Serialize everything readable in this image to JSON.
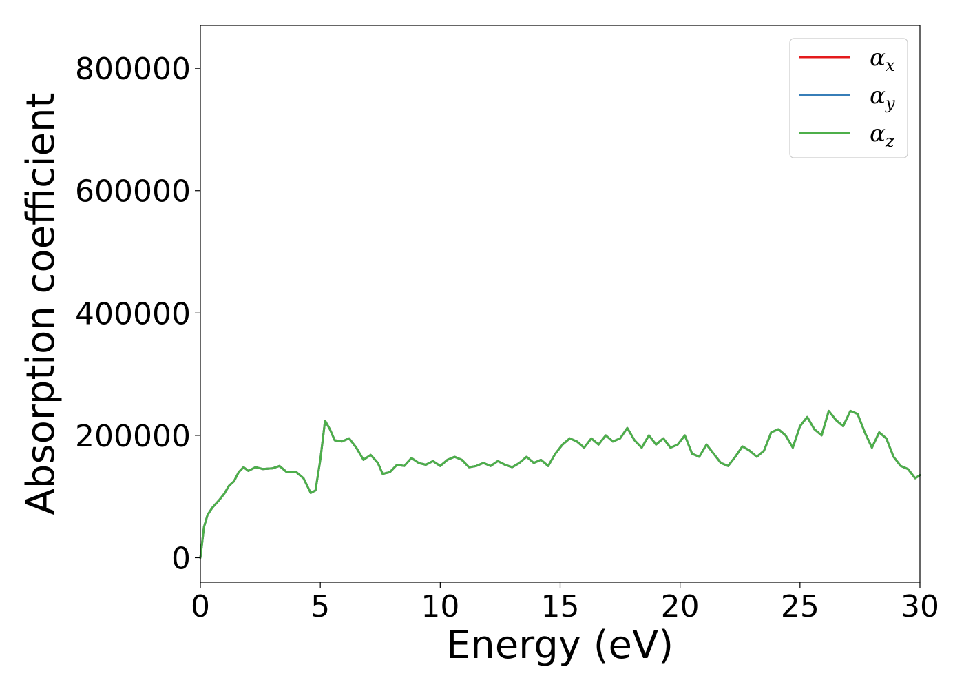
{
  "chart_data": {
    "type": "line",
    "title": "",
    "xlabel": "Energy (eV)",
    "ylabel": "Absorption coefficient",
    "xlim": [
      0,
      30
    ],
    "ylim": [
      -40000,
      870000
    ],
    "xticks": [
      0,
      5,
      10,
      15,
      20,
      25,
      30
    ],
    "xtick_labels": [
      "0",
      "5",
      "10",
      "15",
      "20",
      "25",
      "30"
    ],
    "yticks": [
      0,
      200000,
      400000,
      600000,
      800000
    ],
    "ytick_labels": [
      "0",
      "200000",
      "400000",
      "600000",
      "800000"
    ],
    "grid": false,
    "legend_position": "top-right",
    "series": [
      {
        "name": "αx",
        "symbol": "α",
        "subscript": "x",
        "color": "#e41a1c",
        "x": [
          0,
          0.15,
          0.3,
          0.5,
          0.8,
          1.0,
          1.2,
          1.4,
          1.6,
          1.8,
          2.0,
          2.3,
          2.6,
          3.0,
          3.3,
          3.6,
          4.0,
          4.3,
          4.6,
          4.8,
          5.0,
          5.2,
          5.4,
          5.6,
          5.9,
          6.2,
          6.5,
          6.8,
          7.1,
          7.4,
          7.6,
          7.9,
          8.2,
          8.5,
          8.8,
          9.1,
          9.4,
          9.7,
          10.0,
          10.3,
          10.6,
          10.9,
          11.2,
          11.5,
          11.8,
          12.1,
          12.4,
          12.7,
          13.0,
          13.3,
          13.6,
          13.9,
          14.2,
          14.5,
          14.8,
          15.1,
          15.4,
          15.7,
          16.0,
          16.3,
          16.6,
          16.9,
          17.2,
          17.5,
          17.8,
          18.1,
          18.4,
          18.7,
          19.0,
          19.3,
          19.6,
          19.9,
          20.2,
          20.5,
          20.8,
          21.1,
          21.4,
          21.7,
          22.0,
          22.3,
          22.6,
          22.9,
          23.2,
          23.5,
          23.8,
          24.1,
          24.4,
          24.7,
          25.0,
          25.3,
          25.6,
          25.9,
          26.2,
          26.5,
          26.8,
          27.1,
          27.4,
          27.7,
          28.0,
          28.3,
          28.6,
          28.9,
          29.2,
          29.5,
          29.8,
          30.0
        ],
        "y": [
          0,
          50000,
          70000,
          82000,
          95000,
          105000,
          118000,
          125000,
          140000,
          148000,
          142000,
          148000,
          145000,
          146000,
          150000,
          140000,
          140000,
          130000,
          106000,
          110000,
          160000,
          224000,
          210000,
          192000,
          190000,
          195000,
          180000,
          160000,
          168000,
          155000,
          137000,
          140000,
          152000,
          150000,
          163000,
          155000,
          152000,
          158000,
          150000,
          160000,
          165000,
          160000,
          148000,
          150000,
          155000,
          150000,
          158000,
          152000,
          148000,
          155000,
          165000,
          155000,
          160000,
          150000,
          170000,
          185000,
          195000,
          190000,
          180000,
          195000,
          185000,
          200000,
          190000,
          195000,
          212000,
          192000,
          180000,
          200000,
          185000,
          195000,
          180000,
          185000,
          200000,
          170000,
          165000,
          185000,
          170000,
          155000,
          150000,
          165000,
          182000,
          175000,
          165000,
          175000,
          205000,
          210000,
          200000,
          180000,
          215000,
          230000,
          210000,
          200000,
          240000,
          225000,
          215000,
          240000,
          235000,
          205000,
          180000,
          205000,
          195000,
          165000,
          150000,
          145000,
          130000,
          135000
        ]
      },
      {
        "name": "αy",
        "symbol": "α",
        "subscript": "y",
        "color": "#377eb8",
        "x": [
          0,
          0.15,
          0.3,
          0.5,
          0.8,
          1.0,
          1.2,
          1.4,
          1.6,
          1.8,
          2.0,
          2.3,
          2.6,
          3.0,
          3.3,
          3.6,
          4.0,
          4.3,
          4.6,
          4.8,
          5.0,
          5.2,
          5.4,
          5.6,
          5.9,
          6.2,
          6.5,
          6.8,
          7.1,
          7.4,
          7.6,
          7.9,
          8.2,
          8.5,
          8.8,
          9.1,
          9.4,
          9.7,
          10.0,
          10.3,
          10.6,
          10.9,
          11.2,
          11.5,
          11.8,
          12.1,
          12.4,
          12.7,
          13.0,
          13.3,
          13.6,
          13.9,
          14.2,
          14.5,
          14.8,
          15.1,
          15.4,
          15.7,
          16.0,
          16.3,
          16.6,
          16.9,
          17.2,
          17.5,
          17.8,
          18.1,
          18.4,
          18.7,
          19.0,
          19.3,
          19.6,
          19.9,
          20.2,
          20.5,
          20.8,
          21.1,
          21.4,
          21.7,
          22.0,
          22.3,
          22.6,
          22.9,
          23.2,
          23.5,
          23.8,
          24.1,
          24.4,
          24.7,
          25.0,
          25.3,
          25.6,
          25.9,
          26.2,
          26.5,
          26.8,
          27.1,
          27.4,
          27.7,
          28.0,
          28.3,
          28.6,
          28.9,
          29.2,
          29.5,
          29.8,
          30.0
        ],
        "y": [
          0,
          50000,
          70000,
          82000,
          95000,
          105000,
          118000,
          125000,
          140000,
          148000,
          142000,
          148000,
          145000,
          146000,
          150000,
          140000,
          140000,
          130000,
          106000,
          110000,
          160000,
          224000,
          210000,
          192000,
          190000,
          195000,
          180000,
          160000,
          168000,
          155000,
          137000,
          140000,
          152000,
          150000,
          163000,
          155000,
          152000,
          158000,
          150000,
          160000,
          165000,
          160000,
          148000,
          150000,
          155000,
          150000,
          158000,
          152000,
          148000,
          155000,
          165000,
          155000,
          160000,
          150000,
          170000,
          185000,
          195000,
          190000,
          180000,
          195000,
          185000,
          200000,
          190000,
          195000,
          212000,
          192000,
          180000,
          200000,
          185000,
          195000,
          180000,
          185000,
          200000,
          170000,
          165000,
          185000,
          170000,
          155000,
          150000,
          165000,
          182000,
          175000,
          165000,
          175000,
          205000,
          210000,
          200000,
          180000,
          215000,
          230000,
          210000,
          200000,
          240000,
          225000,
          215000,
          240000,
          235000,
          205000,
          180000,
          205000,
          195000,
          165000,
          150000,
          145000,
          130000,
          135000
        ]
      },
      {
        "name": "αz",
        "symbol": "α",
        "subscript": "z",
        "color": "#4daf4a",
        "x": [
          0,
          0.15,
          0.3,
          0.5,
          0.8,
          1.0,
          1.2,
          1.4,
          1.6,
          1.8,
          2.0,
          2.3,
          2.6,
          3.0,
          3.3,
          3.6,
          4.0,
          4.3,
          4.6,
          4.8,
          5.0,
          5.2,
          5.4,
          5.6,
          5.9,
          6.2,
          6.5,
          6.8,
          7.1,
          7.4,
          7.6,
          7.9,
          8.2,
          8.5,
          8.8,
          9.1,
          9.4,
          9.7,
          10.0,
          10.3,
          10.6,
          10.9,
          11.2,
          11.5,
          11.8,
          12.1,
          12.4,
          12.7,
          13.0,
          13.3,
          13.6,
          13.9,
          14.2,
          14.5,
          14.8,
          15.1,
          15.4,
          15.7,
          16.0,
          16.3,
          16.6,
          16.9,
          17.2,
          17.5,
          17.8,
          18.1,
          18.4,
          18.7,
          19.0,
          19.3,
          19.6,
          19.9,
          20.2,
          20.5,
          20.8,
          21.1,
          21.4,
          21.7,
          22.0,
          22.3,
          22.6,
          22.9,
          23.2,
          23.5,
          23.8,
          24.1,
          24.4,
          24.7,
          25.0,
          25.3,
          25.6,
          25.9,
          26.2,
          26.5,
          26.8,
          27.1,
          27.4,
          27.7,
          28.0,
          28.3,
          28.6,
          28.9,
          29.2,
          29.5,
          29.8,
          30.0
        ],
        "y": [
          0,
          50000,
          70000,
          82000,
          95000,
          105000,
          118000,
          125000,
          140000,
          148000,
          142000,
          148000,
          145000,
          146000,
          150000,
          140000,
          140000,
          130000,
          106000,
          110000,
          160000,
          224000,
          210000,
          192000,
          190000,
          195000,
          180000,
          160000,
          168000,
          155000,
          137000,
          140000,
          152000,
          150000,
          163000,
          155000,
          152000,
          158000,
          150000,
          160000,
          165000,
          160000,
          148000,
          150000,
          155000,
          150000,
          158000,
          152000,
          148000,
          155000,
          165000,
          155000,
          160000,
          150000,
          170000,
          185000,
          195000,
          190000,
          180000,
          195000,
          185000,
          200000,
          190000,
          195000,
          212000,
          192000,
          180000,
          200000,
          185000,
          195000,
          180000,
          185000,
          200000,
          170000,
          165000,
          185000,
          170000,
          155000,
          150000,
          165000,
          182000,
          175000,
          165000,
          175000,
          205000,
          210000,
          200000,
          180000,
          215000,
          230000,
          210000,
          200000,
          240000,
          225000,
          215000,
          240000,
          235000,
          205000,
          180000,
          205000,
          195000,
          165000,
          150000,
          145000,
          130000,
          135000
        ]
      }
    ]
  }
}
